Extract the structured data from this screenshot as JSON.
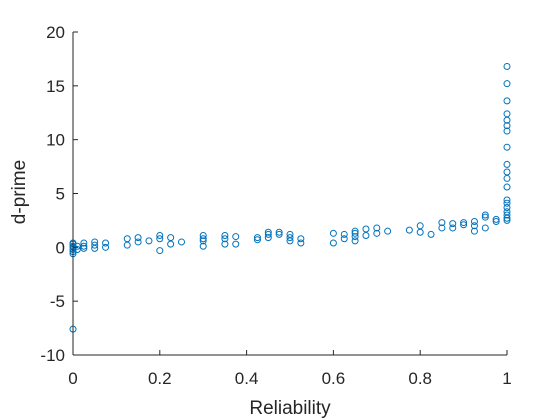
{
  "chart_data": {
    "type": "scatter",
    "title": "",
    "xlabel": "Reliability",
    "ylabel": "d-prime",
    "xlim": [
      0,
      1
    ],
    "ylim": [
      -10,
      20
    ],
    "xticks": [
      0,
      0.2,
      0.4,
      0.6,
      0.8,
      1
    ],
    "xtick_labels": [
      "0",
      "0.2",
      "0.4",
      "0.6",
      "0.8",
      "1"
    ],
    "yticks": [
      -10,
      -5,
      0,
      5,
      10,
      15,
      20
    ],
    "ytick_labels": [
      "-10",
      "-5",
      "0",
      "5",
      "10",
      "15",
      "20"
    ],
    "grid": false,
    "box": false,
    "marker": "circle-open",
    "color": "#0072BD",
    "series": [
      {
        "points": [
          [
            0,
            -7.6
          ],
          [
            0,
            -0.6
          ],
          [
            0,
            -0.4
          ],
          [
            0,
            -0.2
          ],
          [
            0,
            0
          ],
          [
            0,
            0.1
          ],
          [
            0,
            0.3
          ],
          [
            0,
            0.4
          ],
          [
            0.01,
            0.1
          ],
          [
            0.01,
            -0.2
          ],
          [
            0.025,
            -0.1
          ],
          [
            0.025,
            0.1
          ],
          [
            0.025,
            0.4
          ],
          [
            0.05,
            -0.1
          ],
          [
            0.05,
            0.2
          ],
          [
            0.05,
            0.5
          ],
          [
            0.075,
            0.0
          ],
          [
            0.075,
            0.4
          ],
          [
            0.125,
            0.2
          ],
          [
            0.125,
            0.8
          ],
          [
            0.15,
            0.5
          ],
          [
            0.15,
            0.9
          ],
          [
            0.175,
            0.6
          ],
          [
            0.2,
            -0.3
          ],
          [
            0.2,
            0.8
          ],
          [
            0.2,
            1.1
          ],
          [
            0.225,
            0.3
          ],
          [
            0.225,
            0.9
          ],
          [
            0.25,
            0.5
          ],
          [
            0.3,
            0.1
          ],
          [
            0.3,
            0.6
          ],
          [
            0.3,
            0.8
          ],
          [
            0.3,
            1.1
          ],
          [
            0.35,
            0.3
          ],
          [
            0.35,
            0.8
          ],
          [
            0.35,
            1.1
          ],
          [
            0.375,
            0.3
          ],
          [
            0.375,
            1.0
          ],
          [
            0.425,
            0.7
          ],
          [
            0.425,
            0.9
          ],
          [
            0.45,
            0.9
          ],
          [
            0.45,
            1.2
          ],
          [
            0.45,
            1.4
          ],
          [
            0.475,
            1.2
          ],
          [
            0.475,
            1.4
          ],
          [
            0.5,
            0.6
          ],
          [
            0.5,
            0.9
          ],
          [
            0.5,
            1.2
          ],
          [
            0.525,
            0.4
          ],
          [
            0.525,
            0.8
          ],
          [
            0.6,
            0.4
          ],
          [
            0.6,
            1.3
          ],
          [
            0.625,
            0.8
          ],
          [
            0.625,
            1.2
          ],
          [
            0.65,
            0.6
          ],
          [
            0.65,
            1.0
          ],
          [
            0.65,
            1.3
          ],
          [
            0.65,
            1.5
          ],
          [
            0.675,
            1.1
          ],
          [
            0.675,
            1.7
          ],
          [
            0.7,
            1.3
          ],
          [
            0.7,
            1.8
          ],
          [
            0.725,
            1.5
          ],
          [
            0.775,
            1.6
          ],
          [
            0.8,
            1.4
          ],
          [
            0.8,
            2.0
          ],
          [
            0.825,
            1.2
          ],
          [
            0.85,
            1.8
          ],
          [
            0.85,
            2.3
          ],
          [
            0.875,
            1.8
          ],
          [
            0.875,
            2.2
          ],
          [
            0.9,
            2.1
          ],
          [
            0.9,
            2.3
          ],
          [
            0.925,
            2.0
          ],
          [
            0.925,
            2.4
          ],
          [
            0.925,
            1.5
          ],
          [
            0.95,
            1.8
          ],
          [
            0.95,
            2.8
          ],
          [
            0.95,
            3.0
          ],
          [
            0.975,
            2.4
          ],
          [
            0.975,
            2.6
          ],
          [
            1,
            2.5
          ],
          [
            1,
            2.7
          ],
          [
            1,
            3.0
          ],
          [
            1,
            3.3
          ],
          [
            1,
            3.7
          ],
          [
            1,
            4.1
          ],
          [
            1,
            4.4
          ],
          [
            1,
            5.6
          ],
          [
            1,
            6.4
          ],
          [
            1,
            7.0
          ],
          [
            1,
            7.7
          ],
          [
            1,
            9.3
          ],
          [
            1,
            10.8
          ],
          [
            1,
            11.3
          ],
          [
            1,
            11.8
          ],
          [
            1,
            12.4
          ],
          [
            1,
            13.6
          ],
          [
            1,
            15.2
          ],
          [
            1,
            16.8
          ]
        ]
      }
    ]
  }
}
